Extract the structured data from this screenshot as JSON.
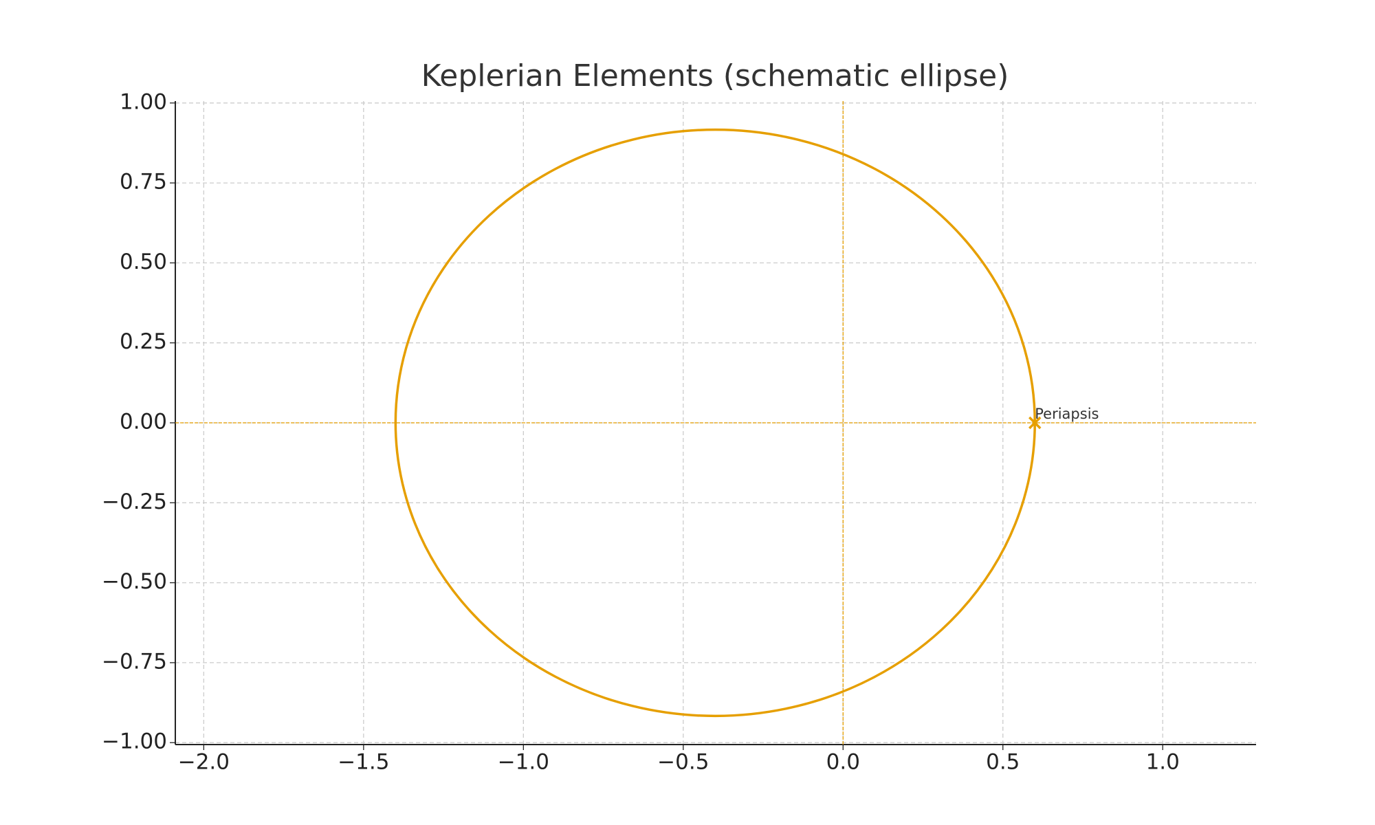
{
  "chart_data": {
    "type": "line",
    "title": "Keplerian Elements (schematic ellipse)",
    "series": [
      {
        "color": "#E69F00",
        "x": [
          0.6,
          0.5659,
          0.466,
          0.3071,
          0.1,
          -0.1412,
          -0.4,
          -0.6588,
          -0.9,
          -1.1071,
          -1.266,
          -1.3659,
          -1.4,
          -1.3659,
          -1.266,
          -1.1071,
          -0.9,
          -0.6588,
          -0.4,
          -0.1412,
          0.1,
          0.3071,
          0.466,
          0.5659,
          0.6
        ],
        "values": [
          0,
          0.2372,
          0.4583,
          0.6481,
          0.7937,
          0.8853,
          0.9165,
          0.8853,
          0.7937,
          0.6481,
          0.4583,
          0.2372,
          0,
          -0.2372,
          -0.4583,
          -0.6481,
          -0.7937,
          -0.8853,
          -0.9165,
          -0.8853,
          -0.7937,
          -0.6481,
          -0.4583,
          -0.2372,
          0
        ]
      }
    ],
    "hlines": [
      0
    ],
    "vlines": [
      0
    ],
    "points": [
      {
        "label": "Periapsis",
        "x": 0.6,
        "y": 0,
        "color": "#E69F00"
      }
    ],
    "xlim": [
      -2.089,
      1.292
    ],
    "ylim": [
      -1.006,
      1.006
    ],
    "xticks": [
      {
        "value": -2.0,
        "label": "−2.0"
      },
      {
        "value": -1.5,
        "label": "−1.5"
      },
      {
        "value": -1.0,
        "label": "−1.0"
      },
      {
        "value": -0.5,
        "label": "−0.5"
      },
      {
        "value": 0,
        "label": "0.0"
      },
      0.5,
      {
        "value": 1.0,
        "label": "1.0"
      }
    ],
    "yticks": [
      {
        "value": -1.0,
        "label": "−1.00"
      },
      {
        "value": -0.75,
        "label": "−0.75"
      },
      {
        "value": -0.5,
        "label": "−0.50"
      },
      {
        "value": -0.25,
        "label": "−0.25"
      },
      {
        "value": 0,
        "label": "0.00"
      },
      0.25,
      {
        "value": 0.5,
        "label": "0.50"
      },
      0.75,
      {
        "value": 1.0,
        "label": "1.00"
      }
    ],
    "grid": true
  }
}
